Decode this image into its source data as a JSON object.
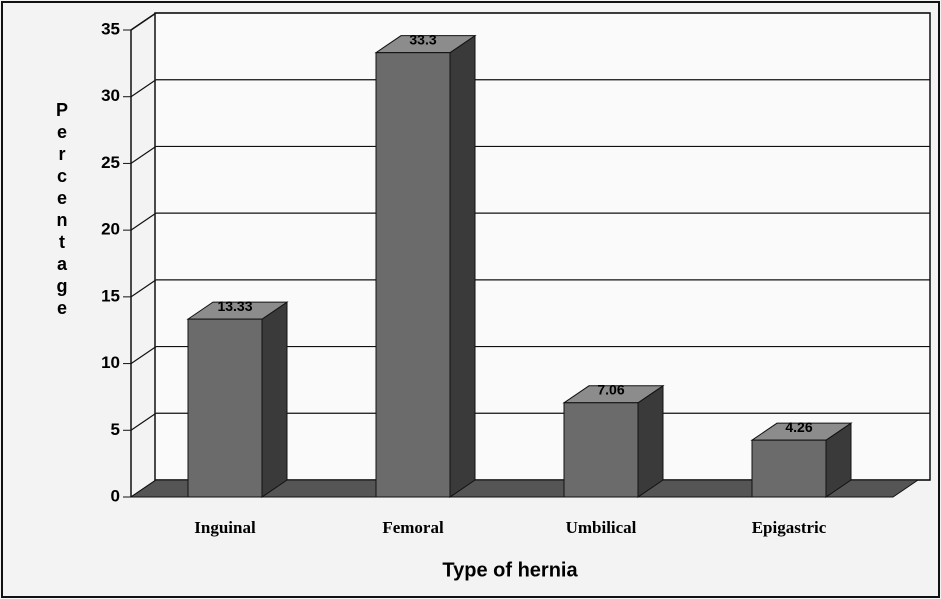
{
  "chart_data": {
    "type": "bar3d",
    "categories": [
      "Inguinal",
      "Femoral",
      "Umbilical",
      "Epigastric"
    ],
    "values": [
      13.33,
      33.3,
      7.06,
      4.26
    ],
    "color": "#6b6b6b",
    "ylim": [
      0,
      35
    ],
    "yticks": [
      0,
      5,
      10,
      15,
      20,
      25,
      30,
      35
    ],
    "grid": true,
    "ylabel": "Percentage",
    "xlabel": "Type of hernia"
  }
}
